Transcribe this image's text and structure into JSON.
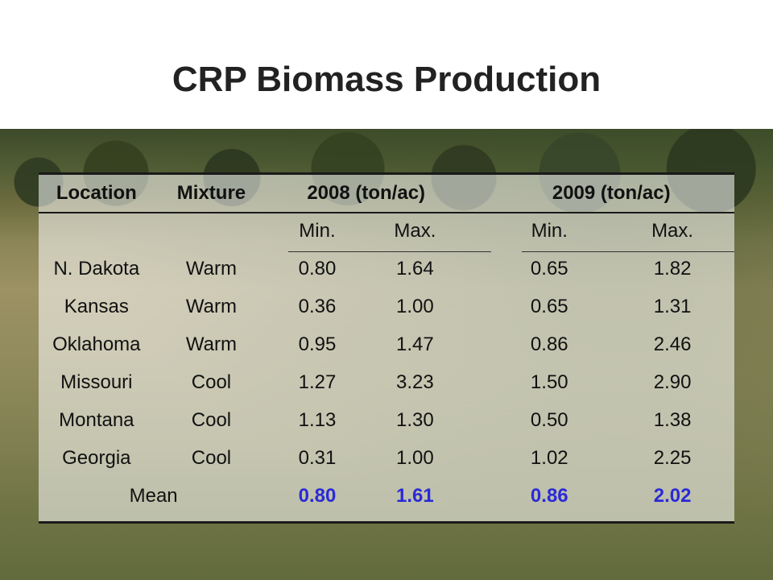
{
  "title": "CRP Biomass Production",
  "colors": {
    "mean_values": "#2a2ad6",
    "title": "#222222"
  },
  "table": {
    "headers": {
      "location": "Location",
      "mixture": "Mixture",
      "y2008": "2008 (ton/ac)",
      "y2009": "2009 (ton/ac)"
    },
    "subheaders": {
      "min_2008": "Min.",
      "max_2008": "Max.",
      "min_2009": "Min.",
      "max_2009": "Max."
    },
    "rows": [
      {
        "location": "N. Dakota",
        "mixture": "Warm",
        "min2008": "0.80",
        "max2008": "1.64",
        "min2009": "0.65",
        "max2009": "1.82"
      },
      {
        "location": "Kansas",
        "mixture": "Warm",
        "min2008": "0.36",
        "max2008": "1.00",
        "min2009": "0.65",
        "max2009": "1.31"
      },
      {
        "location": "Oklahoma",
        "mixture": "Warm",
        "min2008": "0.95",
        "max2008": "1.47",
        "min2009": "0.86",
        "max2009": "2.46"
      },
      {
        "location": "Missouri",
        "mixture": "Cool",
        "min2008": "1.27",
        "max2008": "3.23",
        "min2009": "1.50",
        "max2009": "2.90"
      },
      {
        "location": "Montana",
        "mixture": "Cool",
        "min2008": "1.13",
        "max2008": "1.30",
        "min2009": "0.50",
        "max2009": "1.38"
      },
      {
        "location": "Georgia",
        "mixture": "Cool",
        "min2008": "0.31",
        "max2008": "1.00",
        "min2009": "1.02",
        "max2009": "2.25"
      }
    ],
    "mean": {
      "label": "Mean",
      "min2008": "0.80",
      "max2008": "1.61",
      "min2009": "0.86",
      "max2009": "2.02"
    }
  }
}
